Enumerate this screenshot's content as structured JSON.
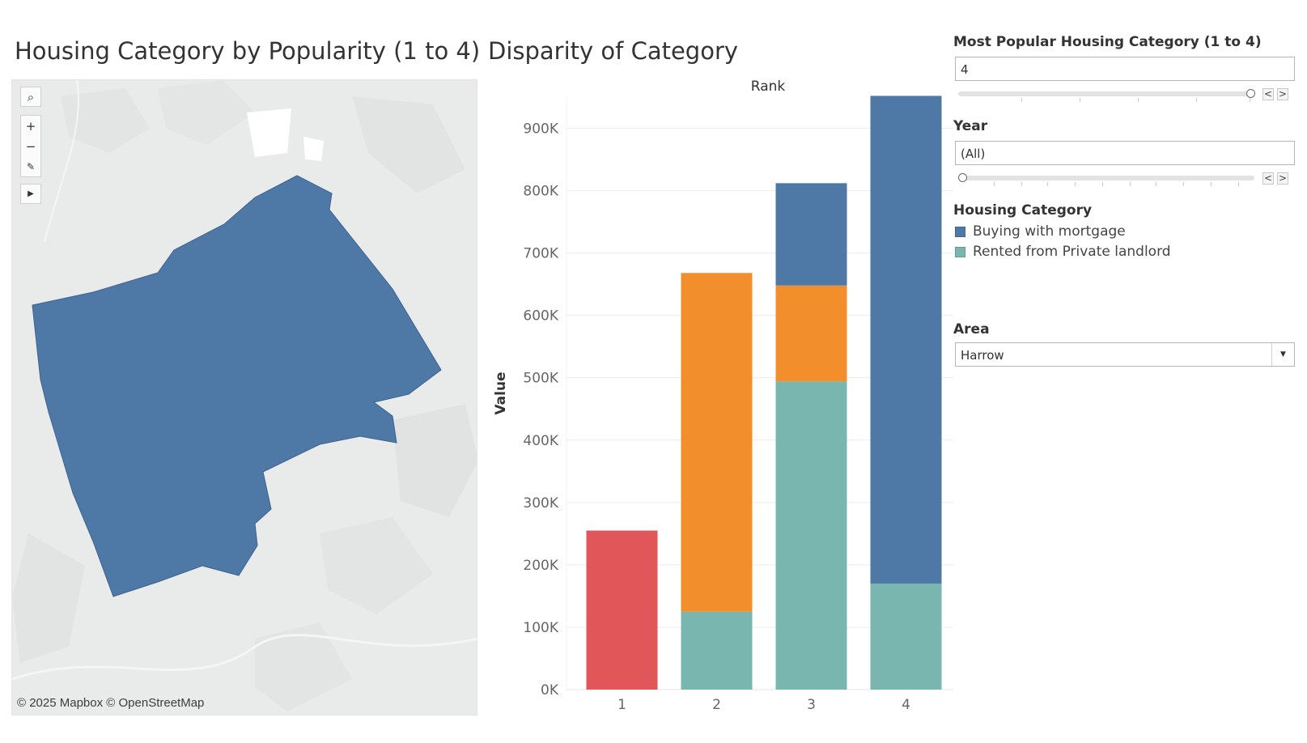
{
  "titles": {
    "map": "Housing Category by Popularity (1 to 4)",
    "chart": "Disparity of Category"
  },
  "map": {
    "attribution": "© 2025 Mapbox © OpenStreetMap",
    "region_color": "#4e78a6",
    "tools": [
      "search-icon",
      "zoom-in-icon",
      "zoom-out-icon",
      "pin-icon",
      "expand-arrow-icon"
    ]
  },
  "filters": {
    "popularity": {
      "label": "Most Popular Housing Category (1 to 4)",
      "value": "4",
      "slider_fraction": 1.0,
      "prev": "<",
      "next": ">"
    },
    "year": {
      "label": "Year",
      "value": "(All)",
      "slider_fraction": 0.0,
      "prev": "<",
      "next": ">"
    },
    "legend": {
      "label": "Housing Category",
      "items": [
        {
          "label": "Buying with mortgage",
          "color": "#4e78a6"
        },
        {
          "label": "Rented from Private landlord",
          "color": "#79b6b0"
        }
      ]
    },
    "area": {
      "label": "Area",
      "value": "Harrow"
    }
  },
  "chart_data": {
    "type": "bar",
    "stacked": true,
    "title": "Disparity of Category",
    "top_label": "Rank",
    "xlabel": "",
    "ylabel": "Value",
    "ylim": [
      0,
      950000
    ],
    "yticks": [
      0,
      100000,
      200000,
      300000,
      400000,
      500000,
      600000,
      700000,
      800000,
      900000
    ],
    "ytick_labels": [
      "0K",
      "100K",
      "200K",
      "300K",
      "400K",
      "500K",
      "600K",
      "700K",
      "800K",
      "900K"
    ],
    "categories": [
      "1",
      "2",
      "3",
      "4"
    ],
    "grid": true,
    "segments": [
      {
        "category": "1",
        "color": "#e15759",
        "values": [
          255000
        ]
      },
      {
        "category": "2",
        "colors": [
          "#79b6b0",
          "#f28e2b"
        ],
        "values": [
          125000,
          543000
        ]
      },
      {
        "category": "3",
        "colors": [
          "#79b6b0",
          "#f28e2b",
          "#4e78a6"
        ],
        "values": [
          494000,
          154000,
          164000
        ]
      },
      {
        "category": "4",
        "colors": [
          "#79b6b0",
          "#4e78a6"
        ],
        "values": [
          170000,
          782000
        ]
      }
    ]
  }
}
